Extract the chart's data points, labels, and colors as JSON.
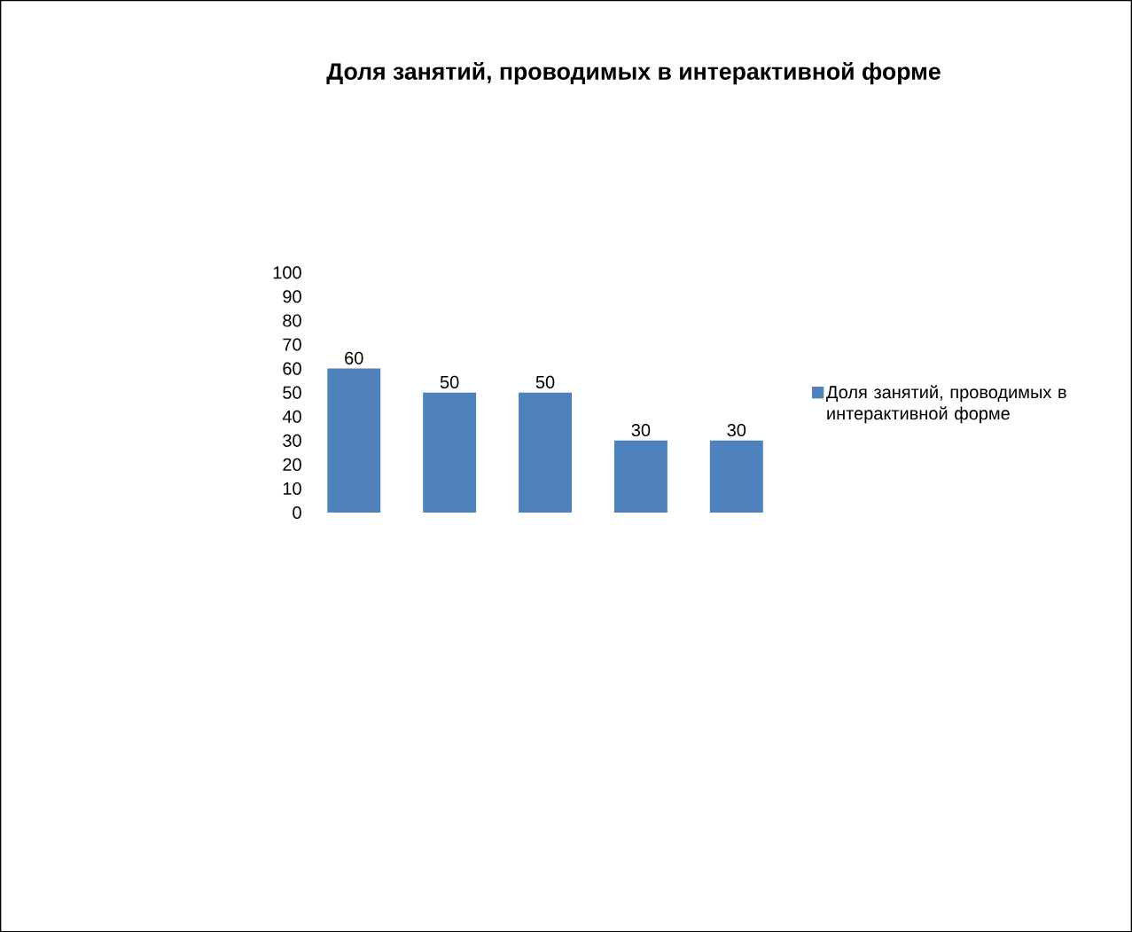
{
  "chart_data": {
    "type": "bar",
    "title": "Доля занятий, проводимых в интерактивной форме",
    "categories": [
      null,
      null,
      null,
      null,
      null
    ],
    "series": [
      {
        "name": "Доля занятий, проводимых в интерактивной форме",
        "color": "#4f81bd",
        "values": [
          60,
          50,
          50,
          30,
          30
        ]
      }
    ],
    "ylim": [
      0,
      100
    ],
    "yticks": [
      0,
      10,
      20,
      30,
      40,
      50,
      60,
      70,
      80,
      90,
      100
    ],
    "data_labels": true,
    "legend": "right"
  }
}
